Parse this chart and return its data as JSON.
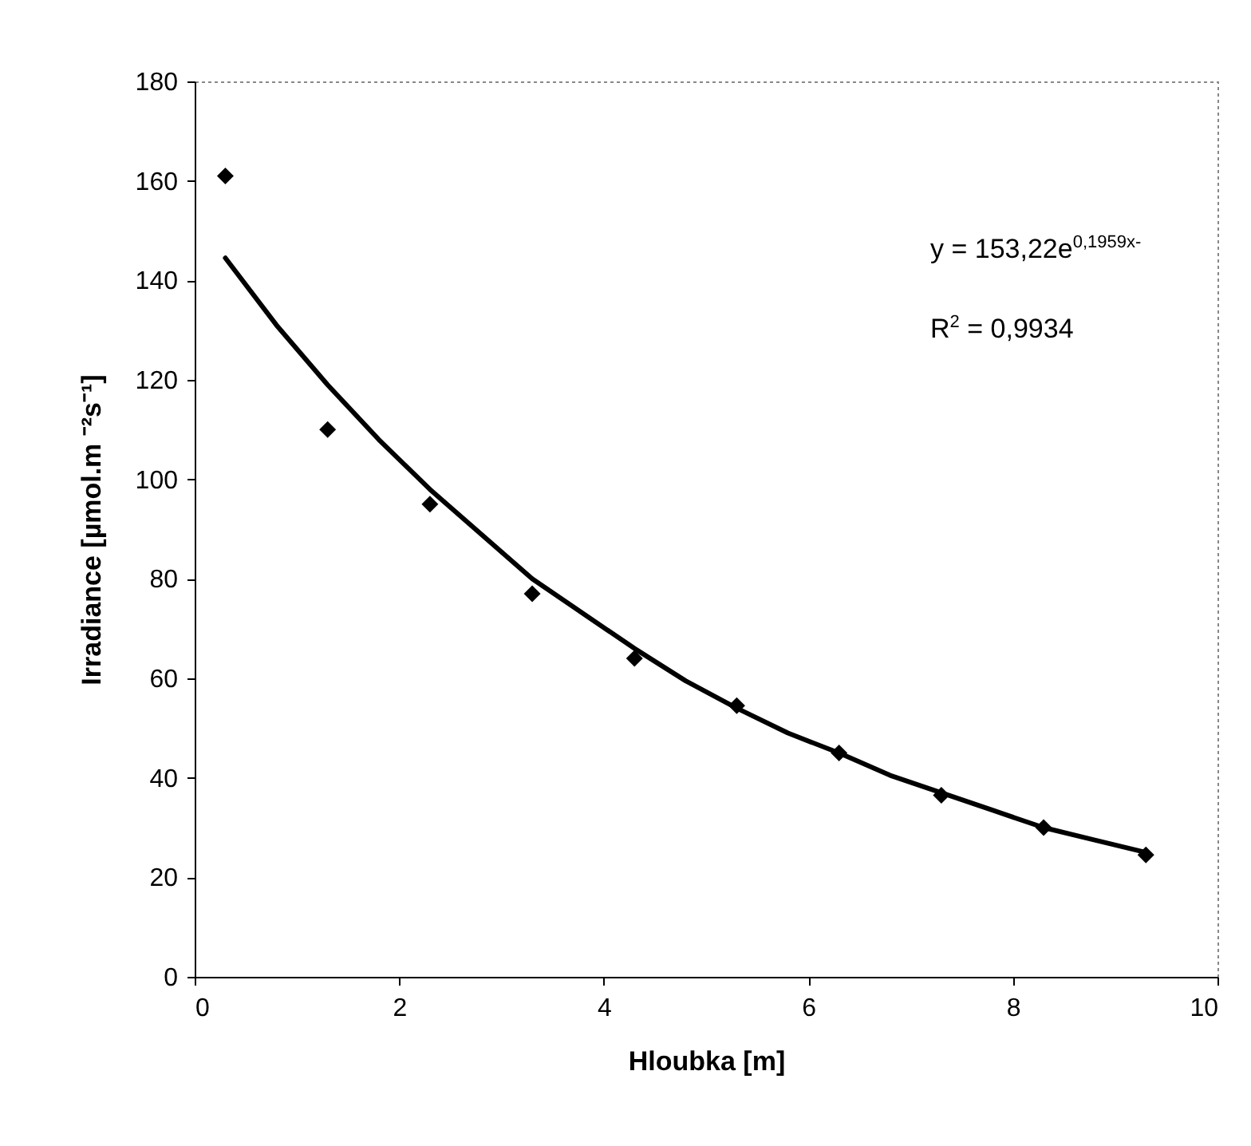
{
  "chart_data": {
    "type": "scatter",
    "xlabel": "Hloubka [m]",
    "ylabel": "Irradiance [µmol.m ⁻²s⁻¹]",
    "xlim": [
      0,
      10
    ],
    "xticks": [
      0,
      2,
      4,
      6,
      8,
      10
    ],
    "ylim": [
      0,
      180
    ],
    "yticks": [
      0,
      20,
      40,
      60,
      80,
      100,
      120,
      140,
      160,
      180
    ],
    "grid": false,
    "marker": "diamond",
    "x": [
      0.3,
      1.3,
      2.3,
      3.3,
      4.3,
      5.3,
      6.3,
      7.3,
      8.3,
      9.3
    ],
    "series": [
      {
        "color": "#000000",
        "values": [
          161,
          110,
          95,
          77,
          64,
          54.5,
          45,
          36.5,
          30,
          24.5
        ]
      },
      {
        "type": "line",
        "color": "#000000",
        "marker": "none",
        "x": [
          0.3,
          0.8,
          1.3,
          1.8,
          2.3,
          2.8,
          3.3,
          3.8,
          4.3,
          4.8,
          5.3,
          5.8,
          6.3,
          6.8,
          7.3,
          7.8,
          8.3,
          8.8,
          9.3
        ],
        "values": [
          144.5,
          131,
          119,
          108,
          98,
          89,
          80,
          73,
          66,
          59.5,
          54,
          49,
          45,
          40.5,
          37,
          33.5,
          30,
          27.5,
          25
        ]
      }
    ],
    "annotations": [
      "y = 153,22e$^{0,1959x-}$",
      "R$^{2}$ = 0,9934"
    ]
  }
}
